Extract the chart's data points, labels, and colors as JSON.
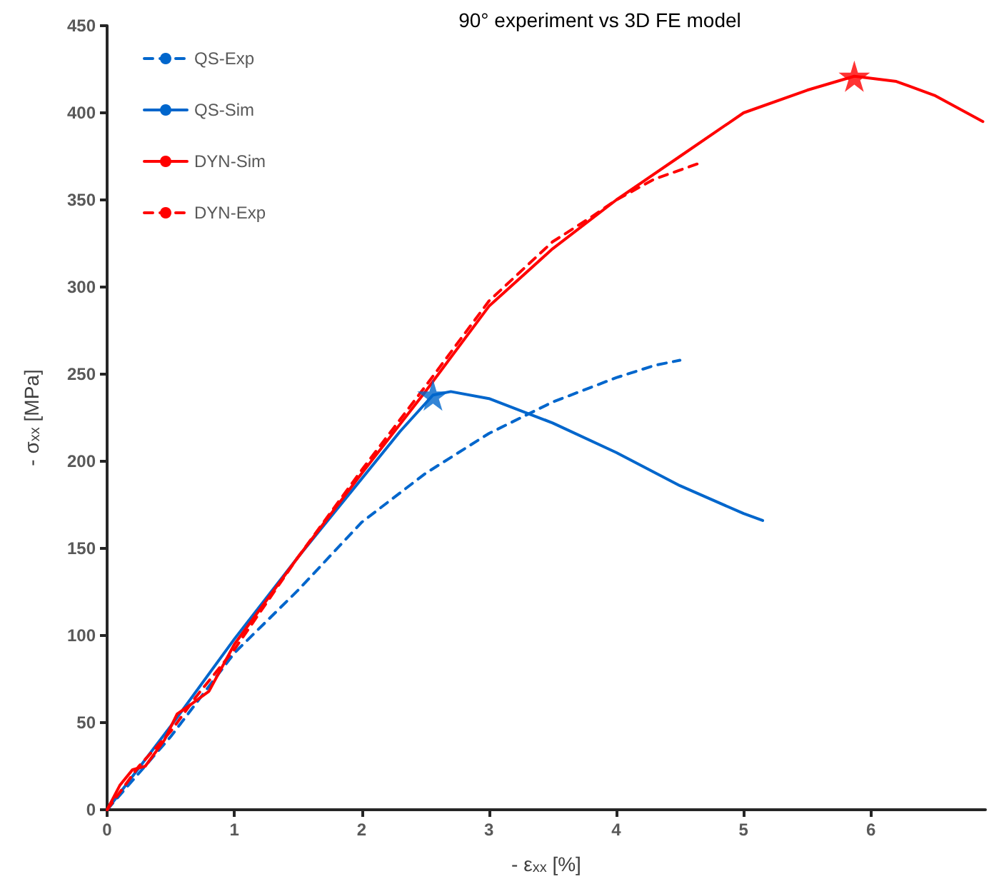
{
  "chart_data": {
    "type": "line",
    "title": "90° experiment vs 3D FE model",
    "xlabel": "- ε$_{xx}$ [%]",
    "ylabel": "- σ$_{xx}$ [MPa]",
    "xlim": [
      0,
      6.9
    ],
    "ylim": [
      0,
      450
    ],
    "xticks": [
      0,
      1,
      2,
      3,
      4,
      5,
      6
    ],
    "yticks": [
      0,
      50,
      100,
      150,
      200,
      250,
      300,
      350,
      400,
      450
    ],
    "legend": "top left",
    "series": [
      {
        "name": "QS-Exp",
        "color": "#0066cc",
        "line_style": "dashed",
        "x": [
          0,
          0.5,
          1,
          1.5,
          2,
          2.5,
          3,
          3.5,
          4,
          4.3,
          4.5
        ],
        "values": [
          0,
          42,
          90,
          126,
          165,
          193,
          216,
          234,
          248,
          255,
          258
        ]
      },
      {
        "name": "QS-Sim",
        "color": "#0066cc",
        "line_style": "solid",
        "x": [
          0,
          0.5,
          1,
          1.5,
          2,
          2.3,
          2.56,
          2.7,
          3,
          3.5,
          4,
          4.5,
          5,
          5.15
        ],
        "values": [
          0,
          48,
          98,
          145,
          190,
          217,
          238,
          240,
          236,
          222,
          205,
          186,
          170,
          166
        ]
      },
      {
        "name": "DYN-Sim",
        "color": "#ff0000",
        "line_style": "solid",
        "x": [
          0,
          0.1,
          0.2,
          0.3,
          0.45,
          0.55,
          0.65,
          0.8,
          1,
          1.5,
          2,
          2.5,
          3,
          3.5,
          4,
          4.5,
          5,
          5.5,
          5.87,
          6.2,
          6.5,
          6.88
        ],
        "values": [
          0,
          14,
          23,
          25,
          40,
          55,
          60,
          68,
          95,
          145,
          193,
          240,
          289,
          322,
          350,
          375,
          400,
          413,
          421,
          418,
          410,
          395
        ]
      },
      {
        "name": "DYN-Exp",
        "color": "#ff0000",
        "line_style": "dashed",
        "x": [
          0,
          0.25,
          0.5,
          0.7,
          1,
          1.5,
          2,
          2.5,
          3,
          3.5,
          3.8,
          4,
          4.3,
          4.65
        ],
        "values": [
          0,
          25,
          45,
          65,
          92,
          145,
          195,
          243,
          292,
          326,
          340,
          350,
          362,
          371
        ]
      },
      {
        "type": "scatter",
        "marker": "star",
        "color": "#0066cc",
        "x": [
          2.56
        ],
        "values": [
          238
        ]
      },
      {
        "type": "scatter",
        "marker": "star",
        "color": "#ff0000",
        "x": [
          5.87
        ],
        "values": [
          421
        ]
      }
    ]
  }
}
